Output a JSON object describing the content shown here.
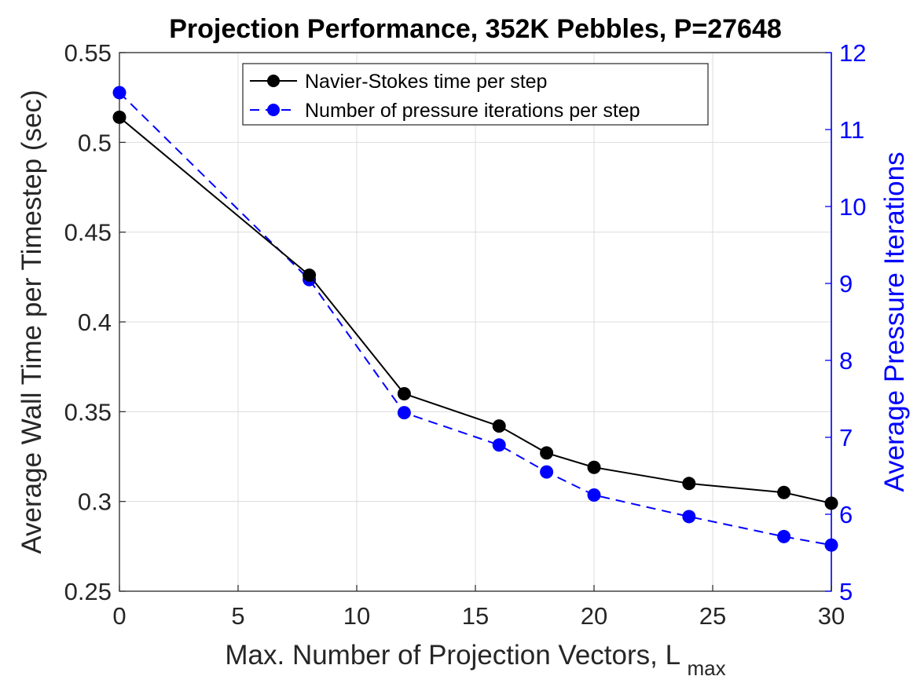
{
  "chart_data": {
    "type": "line",
    "title": "Projection Performance, 352K Pebbles, P=27648",
    "xlabel": "Max. Number of Projection Vectors, L",
    "xlabel_subscript": "max",
    "ylabel_left": "Average Wall Time  per Timestep (sec)",
    "ylabel_right": "Average Pressure Iterations",
    "xlim": [
      0,
      30
    ],
    "ylim_left": [
      0.25,
      0.55
    ],
    "ylim_right": [
      5,
      12
    ],
    "x_ticks": [
      "0",
      "5",
      "10",
      "15",
      "20",
      "25",
      "30"
    ],
    "y_ticks_left": [
      "0.25",
      "0.3",
      "0.35",
      "0.4",
      "0.45",
      "0.5",
      "0.55"
    ],
    "y_ticks_right": [
      "5",
      "6",
      "7",
      "8",
      "9",
      "10",
      "11",
      "12"
    ],
    "grid": true,
    "legend_position": "top-center",
    "series": [
      {
        "name": "Navier-Stokes time per step",
        "axis": "left",
        "color": "#000000",
        "line_style": "solid",
        "x": [
          0,
          8,
          12,
          16,
          18,
          20,
          24,
          28,
          30
        ],
        "values": [
          0.514,
          0.426,
          0.36,
          0.342,
          0.327,
          0.319,
          0.31,
          0.305,
          0.299
        ]
      },
      {
        "name": "Number of pressure iterations per step",
        "axis": "right",
        "color": "#0000ff",
        "line_style": "dashed",
        "x": [
          0,
          8,
          12,
          16,
          18,
          20,
          24,
          28,
          30
        ],
        "values": [
          11.48,
          9.05,
          7.32,
          6.9,
          6.55,
          6.25,
          5.97,
          5.71,
          5.6
        ]
      }
    ]
  }
}
